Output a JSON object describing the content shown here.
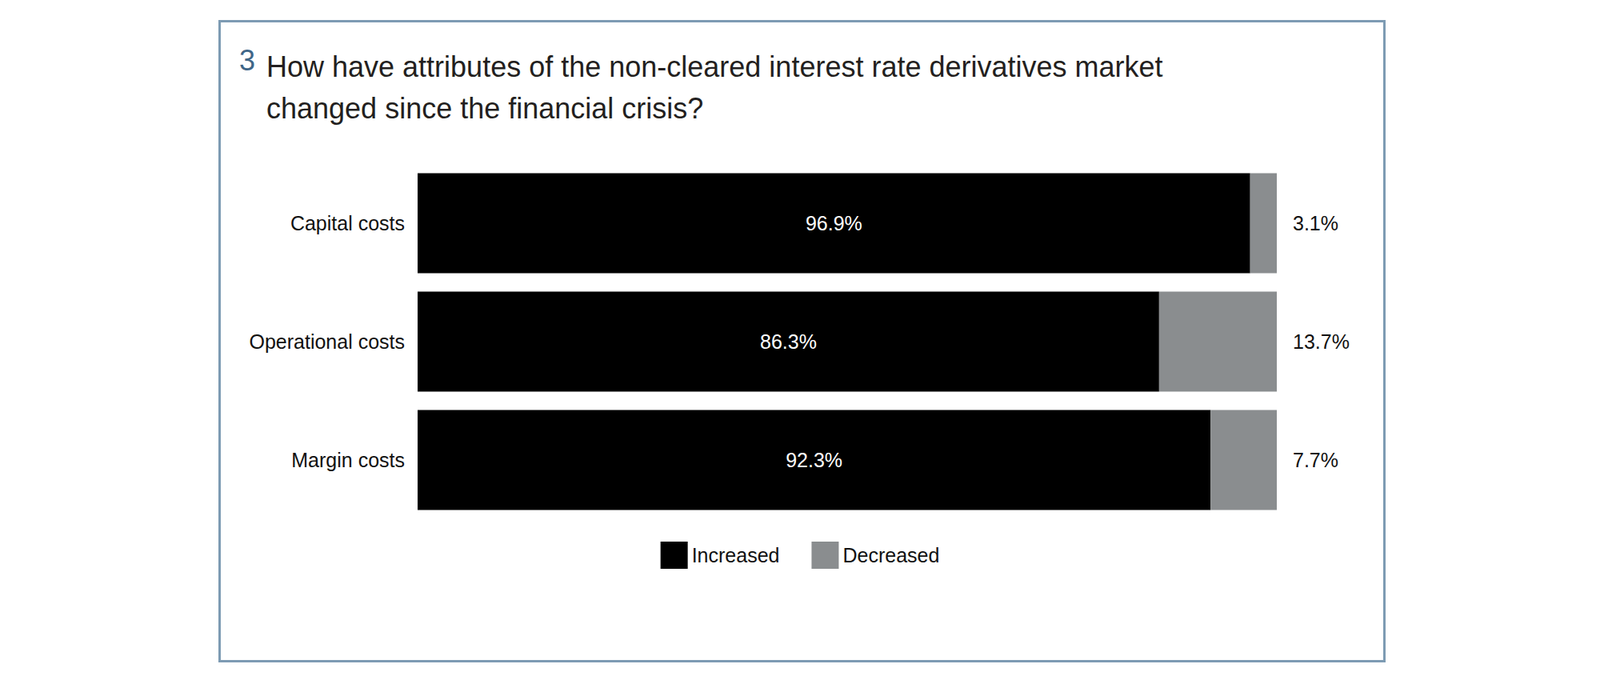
{
  "chart_data": {
    "type": "bar",
    "title": "3 How have attributes of the non-cleared interest rate derivatives market\nchanged since the financial crisis?",
    "categories": [
      "Capital costs",
      "Operational costs",
      "Margin costs"
    ],
    "series": [
      {
        "name": "Increased",
        "color": "#000000",
        "values": [
          96.9,
          86.3,
          92.3
        ],
        "value_labels": [
          "96.9%",
          "86.3%",
          "92.3%"
        ]
      },
      {
        "name": "Decreased",
        "color": "#8a8d8f",
        "values": [
          3.1,
          13.7,
          7.7
        ],
        "value_labels": [
          "3.1%",
          "13.7%",
          "7.7%"
        ]
      }
    ],
    "xlim": [
      0,
      100
    ],
    "orientation": "horizontal",
    "stacked": true,
    "data_labels": true,
    "legend": "bottom",
    "grid": false,
    "tick_labels": "y"
  }
}
